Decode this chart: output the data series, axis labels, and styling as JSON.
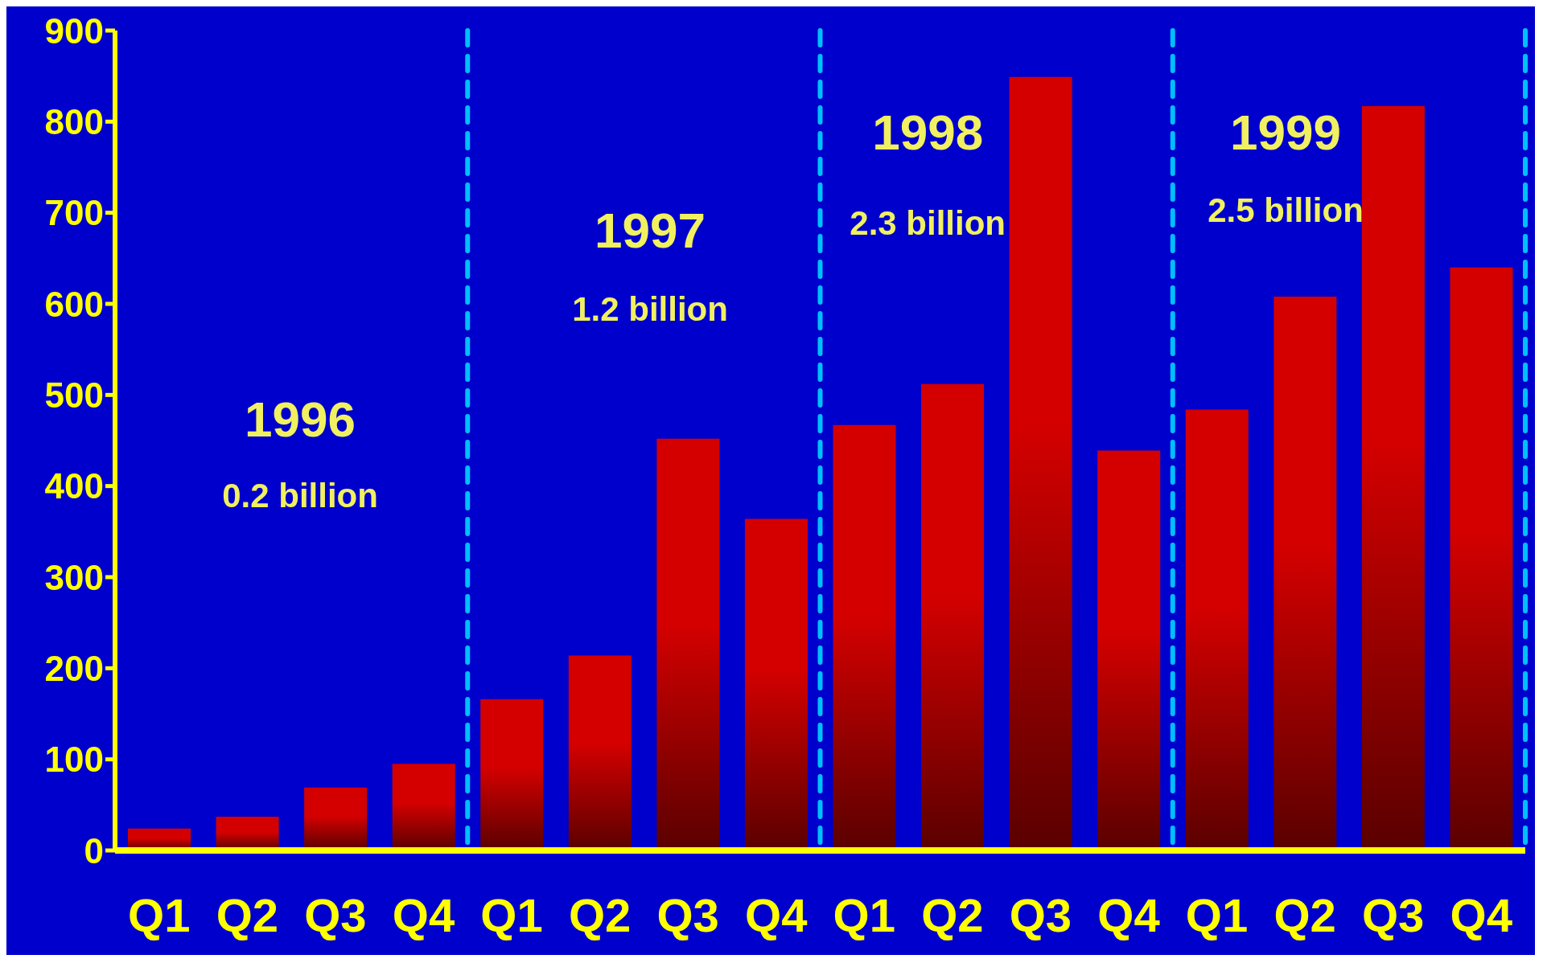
{
  "chart_data": {
    "type": "bar",
    "categories": [
      "Q1",
      "Q2",
      "Q3",
      "Q4",
      "Q1",
      "Q2",
      "Q3",
      "Q4",
      "Q1",
      "Q2",
      "Q3",
      "Q4",
      "Q1",
      "Q2",
      "Q3",
      "Q4"
    ],
    "values": [
      24,
      37,
      69,
      95,
      166,
      214,
      452,
      364,
      467,
      512,
      849,
      439,
      484,
      608,
      817,
      640
    ],
    "color": "#d40000",
    "ylim": [
      0,
      900
    ],
    "yticks": [
      0,
      100,
      200,
      300,
      400,
      500,
      600,
      700,
      800,
      900
    ],
    "grid": false,
    "legend": false,
    "annotations": [
      "1996",
      "0.2 billion",
      "1997",
      "1.2 billion",
      "1998",
      "2.3 billion",
      "1999",
      "2.5 billion"
    ]
  }
}
